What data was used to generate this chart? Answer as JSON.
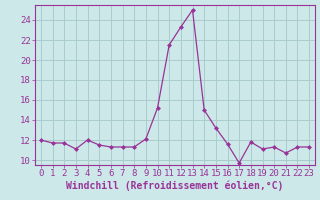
{
  "x": [
    0,
    1,
    2,
    3,
    4,
    5,
    6,
    7,
    8,
    9,
    10,
    11,
    12,
    13,
    14,
    15,
    16,
    17,
    18,
    19,
    20,
    21,
    22,
    23
  ],
  "y": [
    12.0,
    11.7,
    11.7,
    11.1,
    12.0,
    11.5,
    11.3,
    11.3,
    11.3,
    12.1,
    15.2,
    21.5,
    23.3,
    25.0,
    15.0,
    13.2,
    11.6,
    9.7,
    11.8,
    11.1,
    11.3,
    10.7,
    11.3,
    11.3
  ],
  "line_color": "#993399",
  "marker_color": "#993399",
  "bg_color": "#cce8e8",
  "grid_color": "#aacccc",
  "xlabel": "Windchill (Refroidissement éolien,°C)",
  "ylabel_ticks": [
    10,
    12,
    14,
    16,
    18,
    20,
    22,
    24
  ],
  "ylim": [
    9.5,
    25.5
  ],
  "xlim": [
    -0.5,
    23.5
  ],
  "tick_color": "#993399",
  "label_color": "#993399",
  "axis_color": "#993399",
  "font_size": 6.5,
  "xlabel_font_size": 7
}
